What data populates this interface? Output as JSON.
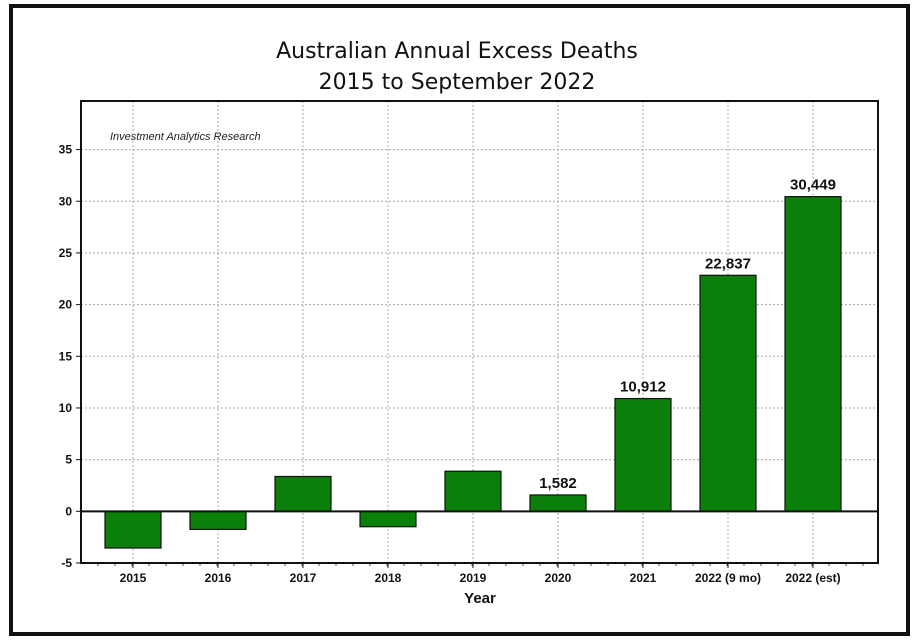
{
  "chart_data": {
    "type": "bar",
    "title": "Australian Annual Excess Deaths",
    "subtitle": "2015 to September 2022",
    "annotation": "Investment Analytics Research",
    "xlabel": "Year",
    "ylabel": "",
    "categories": [
      "2015",
      "2016",
      "2017",
      "2018",
      "2019",
      "2020",
      "2021",
      "2022 (9 mo)",
      "2022 (est)"
    ],
    "values": [
      -3.55,
      -1.75,
      3.37,
      -1.49,
      3.88,
      1.582,
      10.912,
      22.837,
      30.449
    ],
    "data_labels": [
      "",
      "",
      "",
      "",
      "",
      "1,582",
      "10,912",
      "22,837",
      "30,449"
    ],
    "ylim": [
      -5,
      39.7
    ],
    "yticks": [
      -5,
      0,
      5,
      10,
      15,
      20,
      25,
      30,
      35
    ],
    "grid": true,
    "bar_color": "#0a7f0a"
  }
}
